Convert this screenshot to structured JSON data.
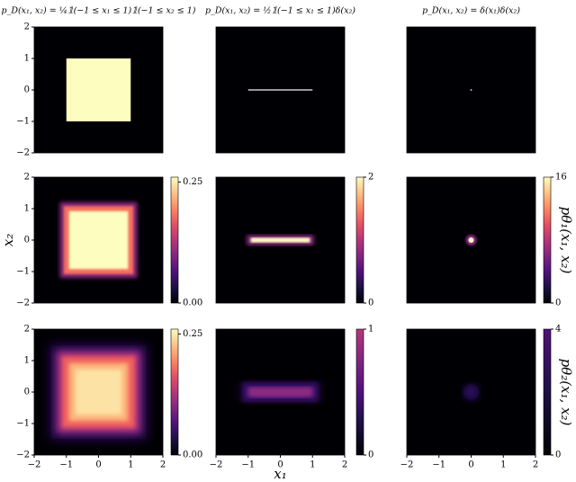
{
  "chart_data": [
    {
      "type": "heatmap",
      "title": "p_D(x₁, x₂) = ¼𝟙(−1 ≤ x₁ ≤ 1)𝟙(−1 ≤ x₂ ≤ 1)",
      "xlim": [
        -2,
        2
      ],
      "ylim": [
        -2,
        2
      ],
      "yticks": [
        {
          "value": -2,
          "label": "−2"
        },
        {
          "value": -1,
          "label": "−1"
        },
        0,
        1,
        2
      ]
    },
    {
      "type": "heatmap",
      "title": "p_D(x₁, x₂) = ½𝟙(−1 ≤ x₁ ≤ 1)δ(x₂)",
      "xlim": [
        -2,
        2
      ],
      "ylim": [
        -2,
        2
      ]
    },
    {
      "type": "heatmap",
      "title": "p_D(x₁, x₂) = δ(x₁)δ(x₂)",
      "xlim": [
        -2,
        2
      ],
      "ylim": [
        -2,
        2
      ]
    },
    {
      "type": "heatmap",
      "xlim": [
        -2,
        2
      ],
      "ylim": [
        -2,
        2
      ],
      "ylabel": "x₂",
      "yticks": [
        {
          "value": -2,
          "label": "−2"
        },
        {
          "value": -1,
          "label": "−1"
        },
        0,
        1,
        2
      ],
      "colorbar": {
        "lim": [
          0,
          0.26
        ],
        "ticks": [
          {
            "value": 0,
            "label": "0.00"
          },
          {
            "value": 0.25,
            "label": "0.25"
          }
        ],
        "colors": [
          "#000004",
          "#1c1044",
          "#4f127b",
          "#812581",
          "#b5367a",
          "#e55064",
          "#fb8761",
          "#fec287",
          "#fcfdbf"
        ]
      }
    },
    {
      "type": "heatmap",
      "xlim": [
        -2,
        2
      ],
      "ylim": [
        -2,
        2
      ],
      "colorbar": {
        "lim": [
          0,
          2
        ],
        "ticks": [
          0,
          2
        ],
        "colors": [
          "#000004",
          "#1c1044",
          "#4f127b",
          "#812581",
          "#b5367a",
          "#e55064",
          "#fb8761",
          "#fec287",
          "#fcfdbf"
        ]
      }
    },
    {
      "type": "heatmap",
      "xlim": [
        -2,
        2
      ],
      "ylim": [
        -2,
        2
      ],
      "colorbar": {
        "lim": [
          0,
          16
        ],
        "ticks": [
          0,
          16
        ],
        "label": "pθ₁(x₁, x₂)",
        "colors": [
          "#000004",
          "#1c1044",
          "#4f127b",
          "#812581",
          "#b5367a",
          "#e55064",
          "#fb8761",
          "#fec287",
          "#fcfdbf"
        ]
      }
    },
    {
      "type": "heatmap",
      "xlim": [
        -2,
        2
      ],
      "ylim": [
        -2,
        2
      ],
      "xticks": [
        {
          "value": -2,
          "label": "−2"
        },
        {
          "value": -1,
          "label": "−1"
        },
        0,
        1,
        2
      ],
      "yticks": [
        {
          "value": -2,
          "label": "−2"
        },
        {
          "value": -1,
          "label": "−1"
        },
        0,
        1,
        2
      ],
      "colorbar": {
        "lim": [
          0,
          0.26
        ],
        "ticks": [
          {
            "value": 0,
            "label": "0.00"
          },
          {
            "value": 0.25,
            "label": "0.25"
          }
        ],
        "colors": [
          "#000004",
          "#1c1044",
          "#4f127b",
          "#812581",
          "#b5367a",
          "#e55064",
          "#fb8761",
          "#fec287",
          "#fcfdbf"
        ]
      }
    },
    {
      "type": "heatmap",
      "xlim": [
        -2,
        2
      ],
      "ylim": [
        -2,
        2
      ],
      "xlabel": "x₁",
      "xticks": [
        {
          "value": -2,
          "label": "−2"
        },
        {
          "value": -1,
          "label": "−1"
        },
        0,
        1,
        2
      ],
      "colorbar": {
        "lim": [
          0,
          1
        ],
        "ticks": [
          0,
          1
        ],
        "colors": [
          "#000004",
          "#1c1044",
          "#4f127b",
          "#812581",
          "#b5367a"
        ]
      }
    },
    {
      "type": "heatmap",
      "xlim": [
        -2,
        2
      ],
      "ylim": [
        -2,
        2
      ],
      "xticks": [
        {
          "value": -2,
          "label": "−2"
        },
        {
          "value": -1,
          "label": "−1"
        },
        0,
        1,
        2
      ],
      "colorbar": {
        "lim": [
          0,
          4
        ],
        "ticks": [
          0,
          4
        ],
        "label": "pθ₂(x₁, x₂)",
        "colors": [
          "#000004",
          "#1c1044",
          "#4f127b"
        ]
      }
    }
  ]
}
